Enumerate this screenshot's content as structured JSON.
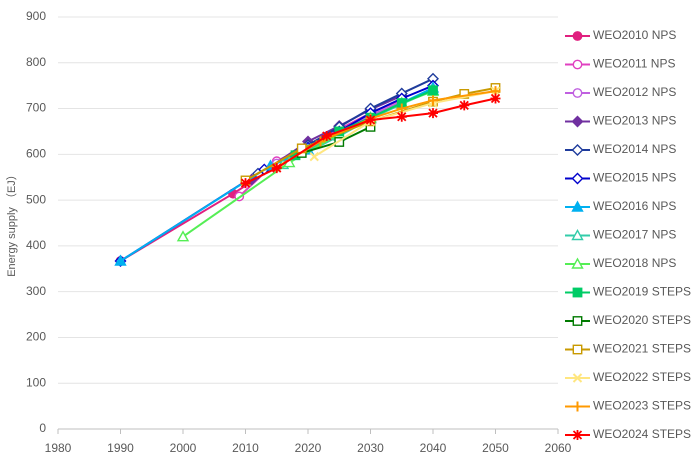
{
  "chart_data": {
    "type": "line",
    "ylabel": "Energy supply （EJ）",
    "xlim": [
      1980,
      2060
    ],
    "xticks": [
      1980,
      1990,
      2000,
      2010,
      2020,
      2030,
      2040,
      2050,
      2060
    ],
    "ylim": [
      0,
      900
    ],
    "yticks": [
      0,
      100,
      200,
      300,
      400,
      500,
      600,
      700,
      800,
      900
    ],
    "grid": true,
    "legend": "right",
    "series": [
      {
        "name": "WEO2010 NPS",
        "color": "#e0207f",
        "marker": "circle",
        "filled": true,
        "x": [
          1990,
          2008,
          2015,
          2020,
          2025,
          2030,
          2035
        ],
        "values": [
          367,
          514,
          575,
          610,
          645,
          680,
          712
        ]
      },
      {
        "name": "WEO2011 NPS",
        "color": "#e040c0",
        "marker": "circle",
        "filled": false,
        "x": [
          2009,
          2015,
          2020,
          2025,
          2030,
          2035
        ],
        "values": [
          508,
          585,
          620,
          655,
          690,
          720
        ]
      },
      {
        "name": "WEO2012 NPS",
        "color": "#c060e0",
        "marker": "circle",
        "filled": false,
        "x": [
          2010,
          2015,
          2020,
          2025,
          2030,
          2035
        ],
        "values": [
          540,
          580,
          615,
          650,
          685,
          715
        ]
      },
      {
        "name": "WEO2013 NPS",
        "color": "#7030a0",
        "marker": "diamond",
        "filled": true,
        "x": [
          2011,
          2020,
          2025,
          2030,
          2035
        ],
        "values": [
          545,
          628,
          662,
          698,
          728
        ]
      },
      {
        "name": "WEO2014 NPS",
        "color": "#1f3c9c",
        "marker": "diamond",
        "filled": false,
        "x": [
          2012,
          2020,
          2025,
          2030,
          2035,
          2040
        ],
        "values": [
          558,
          620,
          660,
          700,
          733,
          765
        ]
      },
      {
        "name": "WEO2015 NPS",
        "color": "#0000cc",
        "marker": "diamond",
        "filled": false,
        "x": [
          1990,
          2013,
          2020,
          2025,
          2030,
          2035,
          2040
        ],
        "values": [
          367,
          567,
          615,
          650,
          690,
          722,
          750
        ]
      },
      {
        "name": "WEO2016 NPS",
        "color": "#00b0f0",
        "marker": "triangle",
        "filled": true,
        "x": [
          1990,
          2014,
          2020,
          2025,
          2030,
          2035,
          2040
        ],
        "values": [
          367,
          575,
          610,
          645,
          680,
          712,
          745
        ]
      },
      {
        "name": "WEO2017 NPS",
        "color": "#33ccaa",
        "marker": "triangle",
        "filled": false,
        "x": [
          2016,
          2025,
          2030,
          2035,
          2040
        ],
        "values": [
          578,
          640,
          678,
          710,
          740
        ]
      },
      {
        "name": "WEO2018 NPS",
        "color": "#55ee55",
        "marker": "triangle",
        "filled": false,
        "x": [
          2000,
          2017,
          2025,
          2030,
          2035,
          2040
        ],
        "values": [
          420,
          582,
          645,
          680,
          712,
          738
        ]
      },
      {
        "name": "WEO2019 STEPS",
        "color": "#00cc66",
        "marker": "square",
        "filled": true,
        "x": [
          2018,
          2025,
          2030,
          2035,
          2040
        ],
        "values": [
          598,
          650,
          680,
          712,
          740
        ]
      },
      {
        "name": "WEO2020 STEPS",
        "color": "#007a00",
        "marker": "square",
        "filled": false,
        "x": [
          2019,
          2025,
          2030
        ],
        "values": [
          603,
          627,
          660
        ]
      },
      {
        "name": "WEO2021 STEPS",
        "color": "#c99a00",
        "marker": "square",
        "filled": false,
        "x": [
          2010,
          2019,
          2030,
          2040,
          2045,
          2050
        ],
        "values": [
          543,
          613,
          672,
          715,
          732,
          745
        ]
      },
      {
        "name": "WEO2022 STEPS",
        "color": "#ffe680",
        "marker": "x",
        "filled": false,
        "x": [
          2021,
          2030,
          2040,
          2050
        ],
        "values": [
          595,
          672,
          712,
          738
        ]
      },
      {
        "name": "WEO2023 STEPS",
        "color": "#ff9900",
        "marker": "plus",
        "filled": false,
        "x": [
          2015,
          2022,
          2030,
          2035,
          2040,
          2050
        ],
        "values": [
          572,
          628,
          678,
          700,
          718,
          738
        ]
      },
      {
        "name": "WEO2024 STEPS",
        "color": "#ff0000",
        "marker": "asterisk",
        "filled": false,
        "x": [
          2010,
          2015,
          2023,
          2030,
          2035,
          2040,
          2045,
          2050
        ],
        "values": [
          537,
          570,
          640,
          675,
          682,
          690,
          707,
          722
        ]
      }
    ]
  }
}
